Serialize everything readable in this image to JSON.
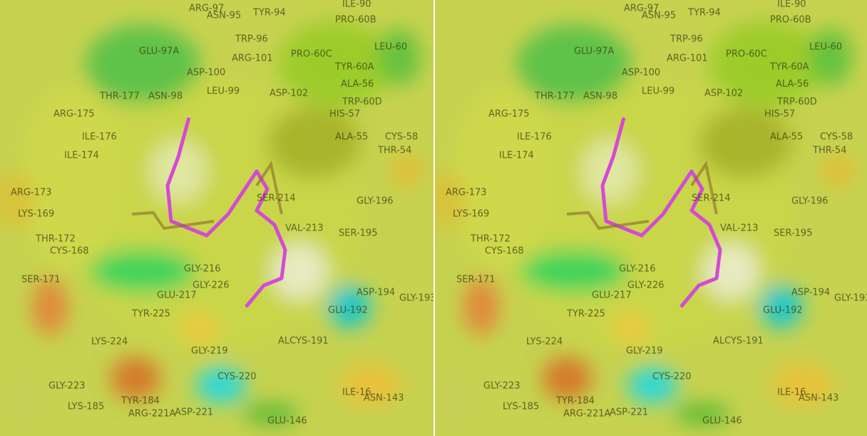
{
  "labels": [
    "ARG-97",
    "ASN-95",
    "TYR-94",
    "ILE-90",
    "PRO-60B",
    "TRP-96",
    "GLU-97A",
    "ARG-101",
    "PRO-60C",
    "LEU-60",
    "TYR-60A",
    "ASP-100",
    "ALA-56",
    "THR-177",
    "ASN-98",
    "LEU-99",
    "ASP-102",
    "TRP-60D",
    "HIS-57",
    "ARG-175",
    "ILE-176",
    "ALA-55",
    "CYS-58",
    "ILE-174",
    "THR-54",
    "ARG-173",
    "GLY-196",
    "SER-214",
    "LYS-169",
    "VAL-213",
    "SER-195",
    "THR-172",
    "CYS-168",
    "GLY-216",
    "GLY-226",
    "SER-171",
    "GLU-217",
    "ASP-194",
    "GLU-192",
    "GLY-193",
    "TYR-225",
    "LYS-224",
    "ALCYS-191",
    "GLY-219",
    "CYS-220",
    "GLY-223",
    "ILE-16",
    "ASN-143",
    "ARG-221A",
    "ASP-221",
    "GLU-146",
    "LYS-185",
    "TYR-184"
  ]
}
